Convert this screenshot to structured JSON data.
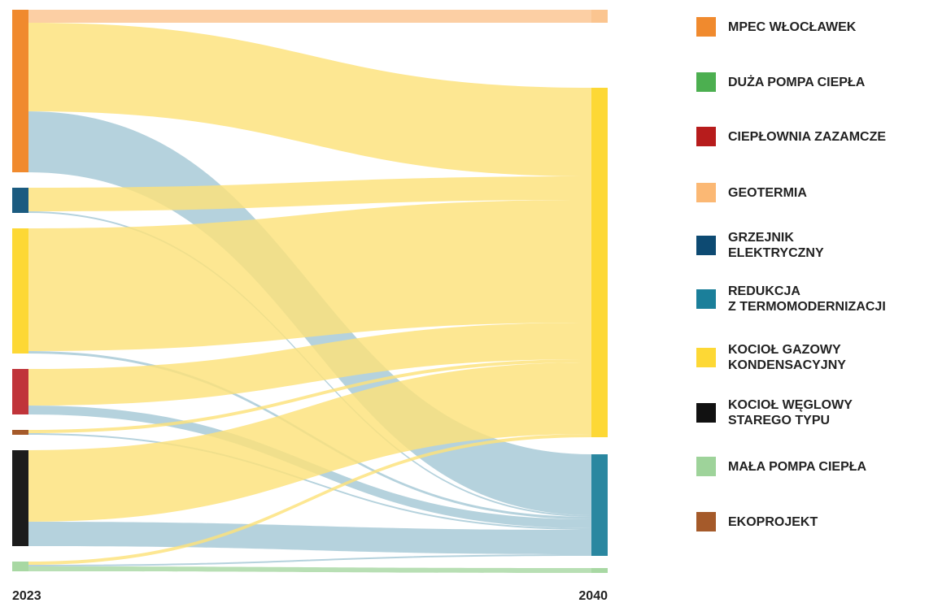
{
  "chart_data": {
    "type": "sankey",
    "columns": [
      "2023",
      "2040"
    ],
    "legend": [
      {
        "label": "MPEC WŁOCŁAWEK",
        "color": "#f08a2e"
      },
      {
        "label": "DUŻA POMPA CIEPŁA",
        "color": "#4caf50"
      },
      {
        "label": "CIEPŁOWNIA ZAZAMCZE",
        "color": "#b71c1c"
      },
      {
        "label": "GEOTERMIA",
        "color": "#fbb874"
      },
      {
        "label": "GRZEJNIK\nELEKTRYCZNY",
        "color": "#0d4a72"
      },
      {
        "label": "REDUKCJA\nZ TERMOMODERNIZACJI",
        "color": "#1b7f9a"
      },
      {
        "label": "KOCIOŁ GAZOWY\nKONDENSACYJNY",
        "color": "#fdd835"
      },
      {
        "label": "KOCIOŁ WĘGLOWY\nSTAREGO TYPU",
        "color": "#111111"
      },
      {
        "label": "MAŁA POMPA CIEPŁA",
        "color": "#9ed39a"
      },
      {
        "label": "EKOPROJEKT",
        "color": "#a55a2a"
      }
    ],
    "left_nodes": [
      {
        "item": 0,
        "color": "#f08a2e"
      },
      {
        "item": 4,
        "color": "#1b5b80"
      },
      {
        "item": 6,
        "color": "#fdd835"
      },
      {
        "item": 2,
        "color": "#c0343a"
      },
      {
        "item": 9,
        "color": "#a55a2a"
      },
      {
        "item": 7,
        "color": "#1c1c1c"
      },
      {
        "item": 8,
        "color": "#a8d8a3"
      }
    ],
    "right_nodes": [
      {
        "item": 3,
        "color": "#fbc590",
        "link_color": "#fbc590"
      },
      {
        "item": 6,
        "color": "#fdd835",
        "link_color": "#fde27a"
      },
      {
        "item": 5,
        "color": "#2a87a0",
        "link_color": "#a5c8d6"
      },
      {
        "item": 8,
        "color": "#a8d8a3",
        "link_color": "#a8d8a3"
      }
    ],
    "links": [
      {
        "source": 0,
        "target": 0,
        "value": 16
      },
      {
        "source": 0,
        "target": 1,
        "value": 109
      },
      {
        "source": 0,
        "target": 2,
        "value": 75
      },
      {
        "source": 1,
        "target": 1,
        "value": 29
      },
      {
        "source": 1,
        "target": 2,
        "value": 2
      },
      {
        "source": 2,
        "target": 1,
        "value": 151
      },
      {
        "source": 2,
        "target": 2,
        "value": 3
      },
      {
        "source": 3,
        "target": 1,
        "value": 45
      },
      {
        "source": 3,
        "target": 2,
        "value": 11
      },
      {
        "source": 4,
        "target": 1,
        "value": 4
      },
      {
        "source": 4,
        "target": 2,
        "value": 2
      },
      {
        "source": 5,
        "target": 1,
        "value": 88
      },
      {
        "source": 5,
        "target": 2,
        "value": 30
      },
      {
        "source": 6,
        "target": 1,
        "value": 4
      },
      {
        "source": 6,
        "target": 2,
        "value": 2
      },
      {
        "source": 6,
        "target": 3,
        "value": 6
      }
    ]
  }
}
